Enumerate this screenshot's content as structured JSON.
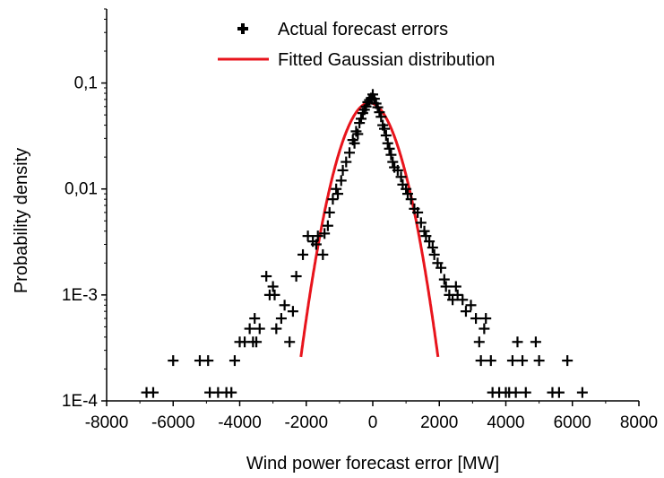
{
  "chart_data": {
    "type": "scatter",
    "xlabel": "Wind power forecast error [MW]",
    "ylabel": "Probability density",
    "x_ticks": [
      -8000,
      -6000,
      -4000,
      -2000,
      0,
      2000,
      4000,
      6000,
      8000
    ],
    "x_tick_labels": [
      "-8000",
      "-6000",
      "-4000",
      "-2000",
      "0",
      "2000",
      "4000",
      "6000",
      "8000"
    ],
    "y_ticks": [
      0.0001,
      0.001,
      0.01,
      0.1
    ],
    "y_tick_labels": [
      "1E-4",
      "1E-3",
      "0,01",
      "0,1"
    ],
    "xlim": [
      -8000,
      8000
    ],
    "ylim": [
      0.0001,
      0.5
    ],
    "y_scale": "log",
    "grid": false,
    "legend": "top-center",
    "series": [
      {
        "name": "Actual forecast errors",
        "kind": "scatter",
        "marker": "plus",
        "color": "#000000",
        "points": [
          [
            -6800,
            0.00012
          ],
          [
            -6600,
            0.00012
          ],
          [
            -6000,
            0.00024
          ],
          [
            -5200,
            0.00024
          ],
          [
            -4950,
            0.00024
          ],
          [
            -4900,
            0.00012
          ],
          [
            -4650,
            0.00012
          ],
          [
            -4400,
            0.00012
          ],
          [
            -4250,
            0.00012
          ],
          [
            -4150,
            0.00024
          ],
          [
            -4000,
            0.00036
          ],
          [
            -3850,
            0.00036
          ],
          [
            -3700,
            0.00048
          ],
          [
            -3600,
            0.00036
          ],
          [
            -3550,
            0.0006
          ],
          [
            -3500,
            0.00036
          ],
          [
            -3400,
            0.00048
          ],
          [
            -3200,
            0.0015
          ],
          [
            -3100,
            0.001
          ],
          [
            -3000,
            0.0012
          ],
          [
            -2950,
            0.001
          ],
          [
            -2900,
            0.00048
          ],
          [
            -2750,
            0.0006
          ],
          [
            -2650,
            0.0008
          ],
          [
            -2500,
            0.00036
          ],
          [
            -2400,
            0.0007
          ],
          [
            -2300,
            0.0015
          ],
          [
            -2100,
            0.0024
          ],
          [
            -1950,
            0.0036
          ],
          [
            -1800,
            0.0032
          ],
          [
            -1700,
            0.003
          ],
          [
            -1650,
            0.0036
          ],
          [
            -1500,
            0.0024
          ],
          [
            -1450,
            0.0038
          ],
          [
            -1350,
            0.0045
          ],
          [
            -1300,
            0.006
          ],
          [
            -1200,
            0.008
          ],
          [
            -1100,
            0.01
          ],
          [
            -1050,
            0.009
          ],
          [
            -950,
            0.012
          ],
          [
            -900,
            0.015
          ],
          [
            -800,
            0.018
          ],
          [
            -700,
            0.022
          ],
          [
            -600,
            0.029
          ],
          [
            -550,
            0.027
          ],
          [
            -500,
            0.035
          ],
          [
            -450,
            0.033
          ],
          [
            -400,
            0.042
          ],
          [
            -350,
            0.046
          ],
          [
            -300,
            0.052
          ],
          [
            -250,
            0.056
          ],
          [
            -200,
            0.06
          ],
          [
            -150,
            0.066
          ],
          [
            -100,
            0.069
          ],
          [
            -50,
            0.072
          ],
          [
            0,
            0.078
          ],
          [
            50,
            0.071
          ],
          [
            100,
            0.064
          ],
          [
            150,
            0.059
          ],
          [
            200,
            0.053
          ],
          [
            250,
            0.048
          ],
          [
            300,
            0.04
          ],
          [
            350,
            0.037
          ],
          [
            400,
            0.032
          ],
          [
            450,
            0.027
          ],
          [
            500,
            0.024
          ],
          [
            550,
            0.021
          ],
          [
            600,
            0.018
          ],
          [
            650,
            0.016
          ],
          [
            750,
            0.015
          ],
          [
            850,
            0.013
          ],
          [
            900,
            0.011
          ],
          [
            1000,
            0.01
          ],
          [
            1050,
            0.009
          ],
          [
            1150,
            0.008
          ],
          [
            1250,
            0.0065
          ],
          [
            1350,
            0.006
          ],
          [
            1450,
            0.0048
          ],
          [
            1550,
            0.004
          ],
          [
            1600,
            0.0036
          ],
          [
            1700,
            0.0032
          ],
          [
            1800,
            0.0028
          ],
          [
            1850,
            0.0024
          ],
          [
            1950,
            0.002
          ],
          [
            2050,
            0.0018
          ],
          [
            2150,
            0.0014
          ],
          [
            2200,
            0.0012
          ],
          [
            2300,
            0.001
          ],
          [
            2400,
            0.0009
          ],
          [
            2500,
            0.0012
          ],
          [
            2550,
            0.001
          ],
          [
            2700,
            0.0009
          ],
          [
            2800,
            0.0007
          ],
          [
            2950,
            0.0008
          ],
          [
            3100,
            0.0006
          ],
          [
            3200,
            0.00036
          ],
          [
            3250,
            0.00024
          ],
          [
            3350,
            0.00048
          ],
          [
            3400,
            0.0006
          ],
          [
            3550,
            0.00024
          ],
          [
            3600,
            0.00012
          ],
          [
            3800,
            0.00012
          ],
          [
            4000,
            0.00012
          ],
          [
            4100,
            0.00012
          ],
          [
            4200,
            0.00024
          ],
          [
            4300,
            0.00012
          ],
          [
            4350,
            0.00036
          ],
          [
            4500,
            0.00024
          ],
          [
            4600,
            0.00012
          ],
          [
            4900,
            0.00036
          ],
          [
            5000,
            0.00024
          ],
          [
            5400,
            0.00012
          ],
          [
            5600,
            0.00012
          ],
          [
            5850,
            0.00024
          ],
          [
            6300,
            0.00012
          ]
        ]
      },
      {
        "name": "Fitted Gaussian distribution",
        "kind": "line",
        "color": "#e8141c",
        "mean": -100,
        "sd": 620,
        "peak": 0.065,
        "x_range": [
          -2160,
          1960
        ]
      }
    ]
  }
}
